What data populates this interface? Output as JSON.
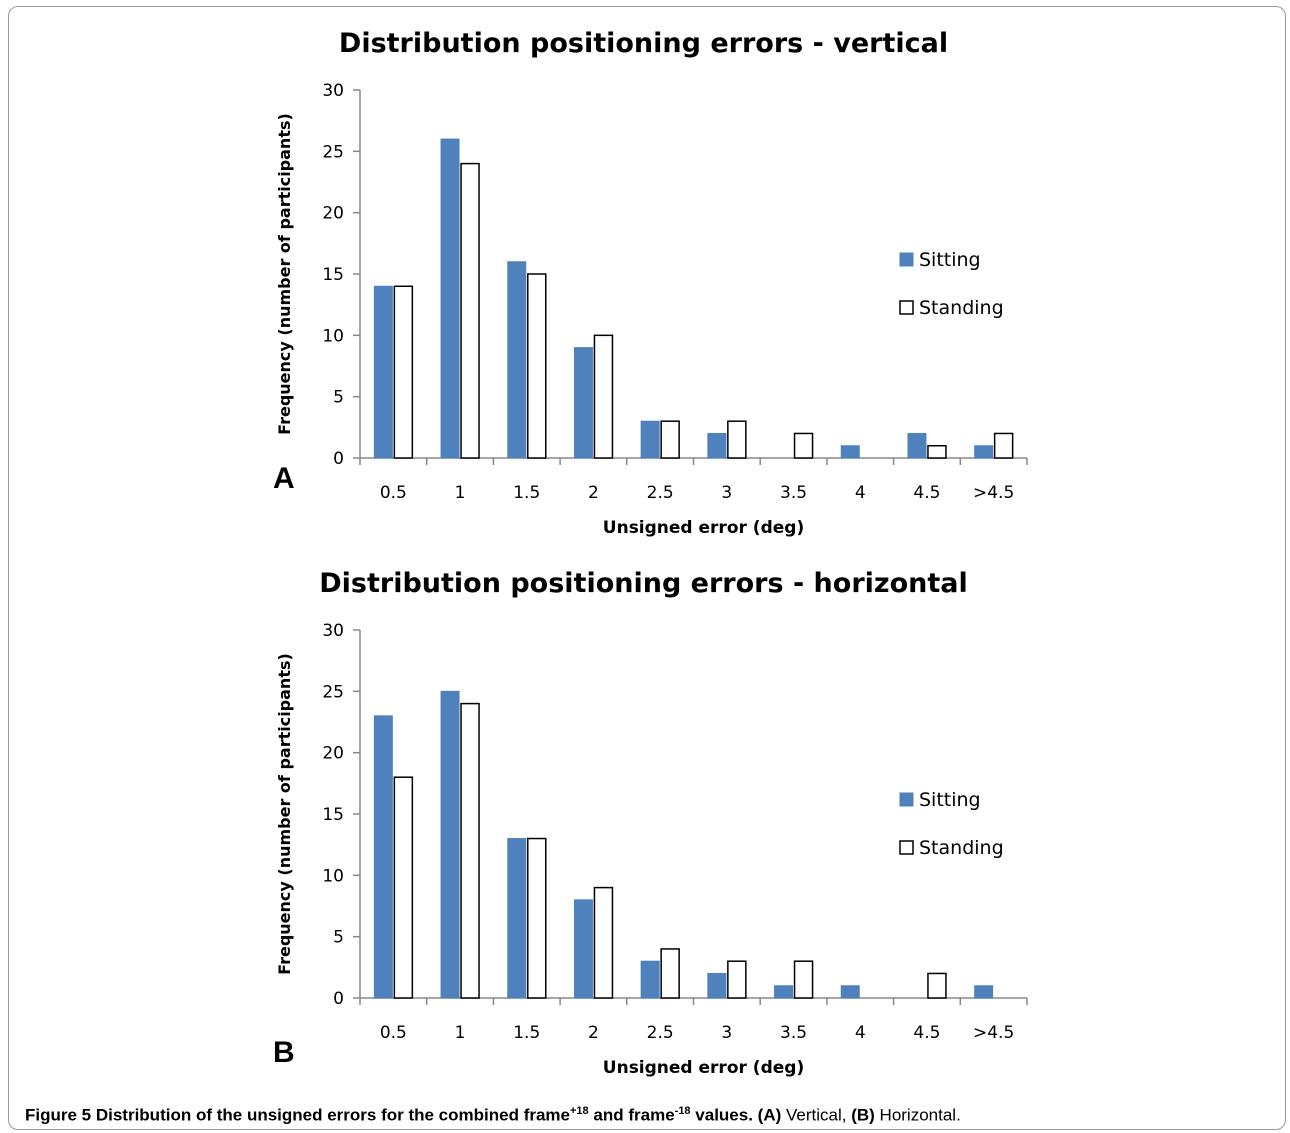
{
  "chart_data": [
    {
      "type": "bar",
      "title": "Distribution positioning errors - vertical",
      "xlabel": "Unsigned  error (deg)",
      "ylabel": "Frequency   (number of participants)",
      "ylim": [
        0,
        30
      ],
      "yticks": [
        "0",
        "5",
        "10",
        "15",
        "20",
        "25",
        "30"
      ],
      "grid": false,
      "legend_position": "right",
      "categories": [
        "0.5",
        "1",
        "1.5",
        "2",
        "2.5",
        "3",
        "3.5",
        "4",
        "4.5",
        ">4.5"
      ],
      "series": [
        {
          "name": "Sitting",
          "color": "#4f81bd",
          "values": [
            14,
            26,
            16,
            9,
            3,
            2,
            0,
            1,
            2,
            1
          ]
        },
        {
          "name": "Standing",
          "color": "#ffffff",
          "values": [
            14,
            24,
            15,
            10,
            3,
            3,
            2,
            0,
            1,
            2
          ]
        }
      ]
    },
    {
      "type": "bar",
      "title": "Distribution positioning errors - horizontal",
      "xlabel": "Unsigned  error (deg)",
      "ylabel": "Frequency   (number of participants)",
      "ylim": [
        0,
        30
      ],
      "yticks": [
        "0",
        "5",
        "10",
        "15",
        "20",
        "25",
        "30"
      ],
      "grid": false,
      "legend_position": "right",
      "categories": [
        "0.5",
        "1",
        "1.5",
        "2",
        "2.5",
        "3",
        "3.5",
        "4",
        "4.5",
        ">4.5"
      ],
      "series": [
        {
          "name": "Sitting",
          "color": "#4f81bd",
          "values": [
            23,
            25,
            13,
            8,
            3,
            2,
            1,
            1,
            0,
            1
          ]
        },
        {
          "name": "Standing",
          "color": "#ffffff",
          "values": [
            18,
            24,
            13,
            9,
            4,
            3,
            3,
            0,
            2,
            0
          ]
        }
      ]
    }
  ],
  "panels": [
    "A",
    "B"
  ],
  "caption": {
    "label": "Figure 5",
    "text_1": " Distribution of the unsigned errors for the combined frame",
    "sup_1": "+18",
    "text_2": " and frame",
    "sup_2": "-18",
    "text_3": " values. ",
    "a_label": "(A)",
    "a_text": " Vertical, ",
    "b_label": "(B)",
    "b_text": " Horizontal."
  }
}
